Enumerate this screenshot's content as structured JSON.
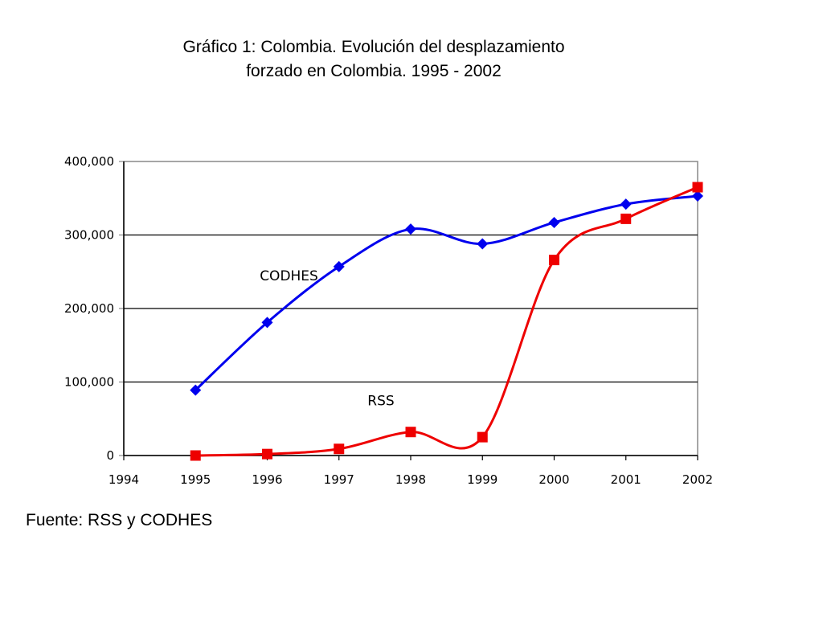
{
  "chart_data": {
    "type": "line",
    "title_line1": "Gráfico 1: Colombia. Evolución del desplazamiento",
    "title_line2": "forzado en Colombia. 1995 - 2002",
    "source": "Fuente: RSS y CODHES",
    "xlabel": "",
    "ylabel": "",
    "xlim": [
      1994,
      2002
    ],
    "ylim": [
      0,
      400000
    ],
    "x_ticks": [
      "1994",
      "1995",
      "1996",
      "1997",
      "1998",
      "1999",
      "2000",
      "2001",
      "2002"
    ],
    "y_ticks": [
      "0",
      "100,000",
      "200,000",
      "300,000",
      "400,000"
    ],
    "grid": "horizontal",
    "x": [
      1995,
      1996,
      1997,
      1998,
      1999,
      2000,
      2001,
      2002
    ],
    "series": [
      {
        "name": "CODHES",
        "color": "#0000ee",
        "marker": "diamond",
        "values": [
          89000,
          181000,
          257000,
          308000,
          288000,
          317000,
          342000,
          353000
        ]
      },
      {
        "name": "RSS",
        "color": "#ee0000",
        "marker": "square",
        "values": [
          0,
          2000,
          9000,
          32000,
          25000,
          266000,
          322000,
          365000
        ]
      }
    ],
    "annotations": [
      "CODHES",
      "RSS"
    ]
  }
}
